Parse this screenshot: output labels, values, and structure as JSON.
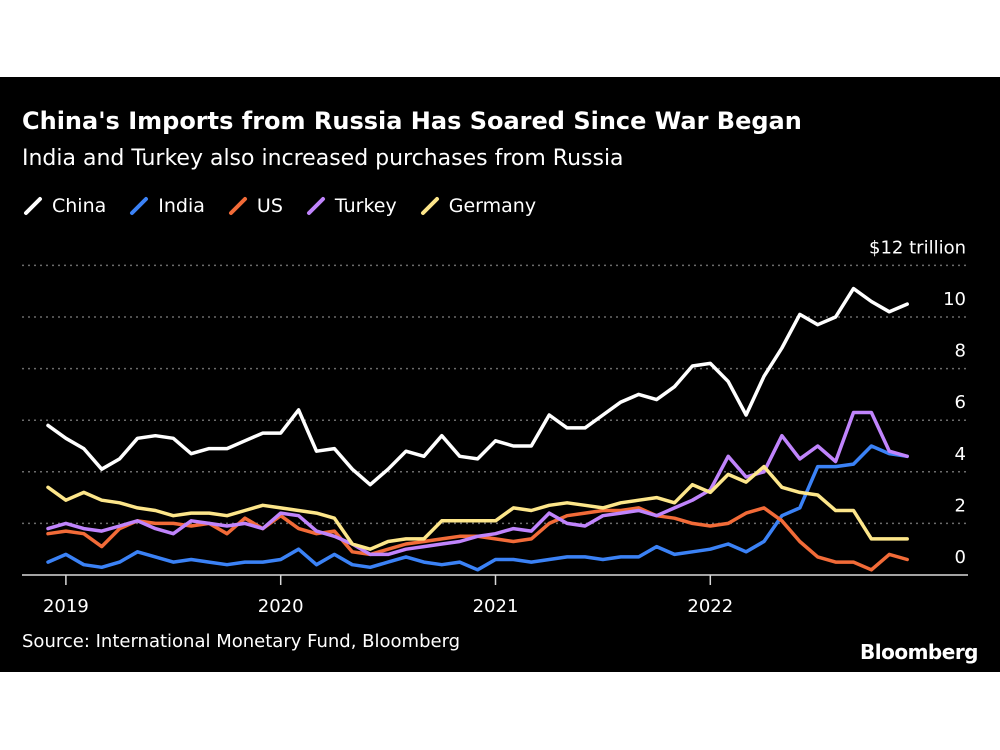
{
  "chart_data": {
    "type": "line",
    "title": "China's Imports from Russia Has Soared Since War Began",
    "subtitle": "India and Turkey also increased purchases from Russia",
    "y_unit_label": "$12 trillion",
    "ylim": [
      0,
      12
    ],
    "y_ticks": [
      "0",
      "2",
      "4",
      "6",
      "8",
      "10",
      "$12 trillion"
    ],
    "x_ticks": [
      "2019",
      "2020",
      "2021",
      "2022"
    ],
    "grid": true,
    "legend_position": "top-left",
    "source": "Source: International Monetary Fund, Bloomberg",
    "branding": "Bloomberg",
    "x_start": "2018-12",
    "x_end": "2022-11",
    "series": [
      {
        "name": "China",
        "color": "#ffffff",
        "values": [
          5.8,
          5.3,
          4.9,
          4.1,
          4.5,
          5.3,
          5.4,
          5.3,
          4.7,
          4.9,
          4.9,
          5.2,
          5.5,
          5.5,
          6.4,
          4.8,
          4.9,
          4.1,
          3.5,
          4.1,
          4.8,
          4.6,
          5.4,
          4.6,
          4.5,
          5.2,
          5.0,
          5.0,
          6.2,
          5.7,
          5.7,
          6.2,
          6.7,
          7.0,
          6.8,
          7.3,
          8.1,
          8.2,
          7.5,
          6.2,
          7.7,
          8.8,
          10.1,
          9.7,
          10.0,
          11.1,
          10.6,
          10.2,
          10.5
        ]
      },
      {
        "name": "India",
        "color": "#3b82f6",
        "values": [
          0.5,
          0.8,
          0.4,
          0.3,
          0.5,
          0.9,
          0.7,
          0.5,
          0.6,
          0.5,
          0.4,
          0.5,
          0.5,
          0.6,
          1.0,
          0.4,
          0.8,
          0.4,
          0.3,
          0.5,
          0.7,
          0.5,
          0.4,
          0.5,
          0.2,
          0.6,
          0.6,
          0.5,
          0.6,
          0.7,
          0.7,
          0.6,
          0.7,
          0.7,
          1.1,
          0.8,
          0.9,
          1.0,
          1.2,
          0.9,
          1.3,
          2.3,
          2.6,
          4.2,
          4.2,
          4.3,
          5.0,
          4.7,
          4.6
        ]
      },
      {
        "name": "US",
        "color": "#f26b38",
        "values": [
          1.6,
          1.7,
          1.6,
          1.1,
          1.8,
          2.1,
          2.0,
          2.0,
          1.9,
          2.0,
          1.6,
          2.2,
          1.8,
          2.3,
          1.8,
          1.6,
          1.7,
          0.9,
          0.8,
          1.0,
          1.2,
          1.3,
          1.4,
          1.5,
          1.5,
          1.4,
          1.3,
          1.4,
          2.0,
          2.3,
          2.4,
          2.5,
          2.5,
          2.6,
          2.3,
          2.2,
          2.0,
          1.9,
          2.0,
          2.4,
          2.6,
          2.1,
          1.3,
          0.7,
          0.5,
          0.5,
          0.2,
          0.8,
          0.6
        ]
      },
      {
        "name": "Turkey",
        "color": "#c084fc",
        "values": [
          1.8,
          2.0,
          1.8,
          1.7,
          1.9,
          2.1,
          1.8,
          1.6,
          2.1,
          2.0,
          1.9,
          2.0,
          1.8,
          2.4,
          2.3,
          1.7,
          1.5,
          1.2,
          0.8,
          0.8,
          1.0,
          1.1,
          1.2,
          1.3,
          1.5,
          1.6,
          1.8,
          1.7,
          2.4,
          2.0,
          1.9,
          2.3,
          2.4,
          2.5,
          2.3,
          2.6,
          2.9,
          3.3,
          4.6,
          3.8,
          4.0,
          5.4,
          4.5,
          5.0,
          4.4,
          6.3,
          6.3,
          4.8,
          4.6
        ]
      },
      {
        "name": "Germany",
        "color": "#fde68a",
        "values": [
          3.4,
          2.9,
          3.2,
          2.9,
          2.8,
          2.6,
          2.5,
          2.3,
          2.4,
          2.4,
          2.3,
          2.5,
          2.7,
          2.6,
          2.5,
          2.4,
          2.2,
          1.2,
          1.0,
          1.3,
          1.4,
          1.4,
          2.1,
          2.1,
          2.1,
          2.1,
          2.6,
          2.5,
          2.7,
          2.8,
          2.7,
          2.6,
          2.8,
          2.9,
          3.0,
          2.8,
          3.5,
          3.2,
          3.9,
          3.6,
          4.2,
          3.4,
          3.2,
          3.1,
          2.5,
          2.5,
          1.4,
          1.4,
          1.4
        ]
      }
    ]
  },
  "brand_color": "#000000"
}
